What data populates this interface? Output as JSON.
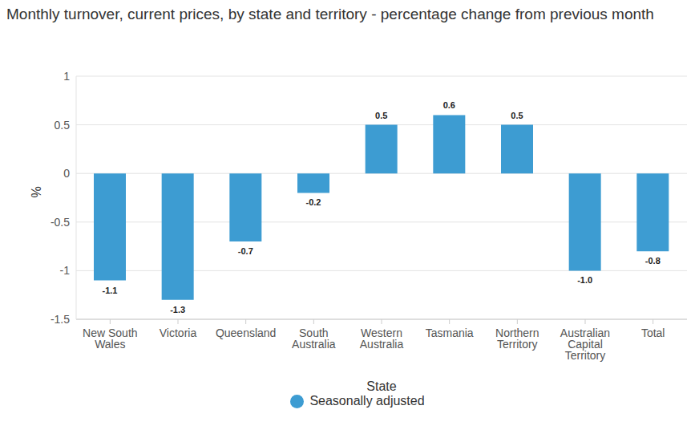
{
  "chart_data": {
    "type": "bar",
    "title": "Monthly turnover, current prices, by state and territory - percentage change from previous month",
    "x_label": "State",
    "y_label": "%",
    "categories": [
      "New South Wales",
      "Victoria",
      "Queensland",
      "South Australia",
      "Western Australia",
      "Tasmania",
      "Northern Territory",
      "Australian Capital Territory",
      "Total"
    ],
    "series": [
      {
        "name": "Seasonally adjusted",
        "color": "#3d9cd2",
        "values": [
          -1.1,
          -1.3,
          -0.7,
          -0.2,
          0.5,
          0.6,
          0.5,
          -1.0,
          -0.8
        ],
        "value_labels": [
          "-1.1",
          "-1.3",
          "-0.7",
          "-0.2",
          "0.5",
          "0.6",
          "0.5",
          "-1.0",
          "-0.8"
        ]
      }
    ],
    "ylim": [
      -1.5,
      1
    ],
    "yticks": [
      -1.5,
      -1,
      -0.5,
      0,
      0.5,
      1
    ],
    "grid": true,
    "legend": "bottom",
    "data_labels": true
  }
}
